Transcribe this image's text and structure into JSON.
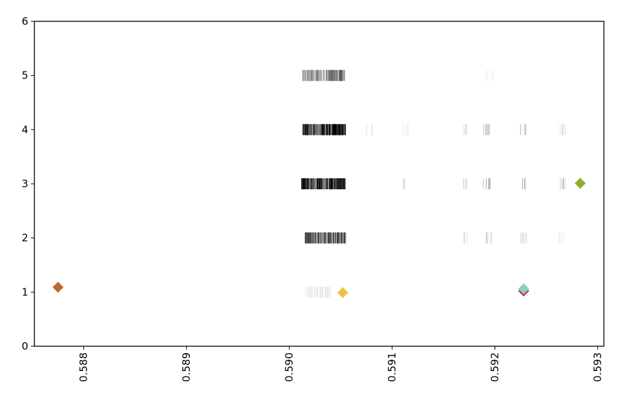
{
  "chart_data": {
    "type": "scatter",
    "title": "",
    "xlabel": "",
    "ylabel": "",
    "xlim": [
      0.58752,
      0.59306
    ],
    "ylim": [
      0,
      6
    ],
    "x_ticks": [
      0.588,
      0.589,
      0.59,
      0.591,
      0.592,
      0.593
    ],
    "x_tick_labels": [
      "0.588",
      "0.589",
      "0.590",
      "0.591",
      "0.592",
      "0.593"
    ],
    "y_ticks": [
      0,
      1,
      2,
      3,
      4,
      5,
      6
    ],
    "y_tick_labels": [
      "0",
      "1",
      "2",
      "3",
      "4",
      "5",
      "6"
    ],
    "x_tick_rotation": 90,
    "grid": false,
    "legend": "none",
    "strip_series": [
      {
        "y": 5,
        "x_range": [
          0.59013,
          0.59054
        ],
        "intensity": 0.35
      },
      {
        "y": 4,
        "x_range": [
          0.59013,
          0.59055
        ],
        "intensity": 1.0
      },
      {
        "y": 3,
        "x_range": [
          0.59012,
          0.59055
        ],
        "intensity": 1.0
      },
      {
        "y": 2,
        "x_range": [
          0.59015,
          0.59055
        ],
        "intensity": 0.55
      },
      {
        "y": 1,
        "x_range": [
          0.59015,
          0.5904
        ],
        "intensity": 0.04
      }
    ],
    "faint_clusters": [
      {
        "y": 5,
        "x": 0.59195,
        "intensity": 0.08
      },
      {
        "y": 4,
        "x": 0.59078,
        "intensity": 0.12
      },
      {
        "y": 4,
        "x": 0.59113,
        "intensity": 0.12
      },
      {
        "y": 4,
        "x": 0.59172,
        "intensity": 0.2
      },
      {
        "y": 4,
        "x": 0.59192,
        "intensity": 0.45
      },
      {
        "y": 4,
        "x": 0.59228,
        "intensity": 0.4
      },
      {
        "y": 4,
        "x": 0.59266,
        "intensity": 0.25
      },
      {
        "y": 3,
        "x": 0.59113,
        "intensity": 0.15
      },
      {
        "y": 3,
        "x": 0.5917,
        "intensity": 0.25
      },
      {
        "y": 3,
        "x": 0.59192,
        "intensity": 0.5
      },
      {
        "y": 3,
        "x": 0.59228,
        "intensity": 0.4
      },
      {
        "y": 3,
        "x": 0.59265,
        "intensity": 0.3
      },
      {
        "y": 2,
        "x": 0.59172,
        "intensity": 0.15
      },
      {
        "y": 2,
        "x": 0.59194,
        "intensity": 0.35
      },
      {
        "y": 2,
        "x": 0.59228,
        "intensity": 0.25
      },
      {
        "y": 2,
        "x": 0.59265,
        "intensity": 0.12
      }
    ],
    "highlight_points": [
      {
        "x": 0.58775,
        "y": 1.09,
        "color": "#c0692b"
      },
      {
        "x": 0.59052,
        "y": 0.99,
        "color": "#f0c040"
      },
      {
        "x": 0.59228,
        "y": 1.02,
        "color": "#c0393b"
      },
      {
        "x": 0.59228,
        "y": 1.06,
        "color": "#8ccfc6"
      },
      {
        "x": 0.59283,
        "y": 3.01,
        "color": "#8fae2f"
      }
    ]
  }
}
